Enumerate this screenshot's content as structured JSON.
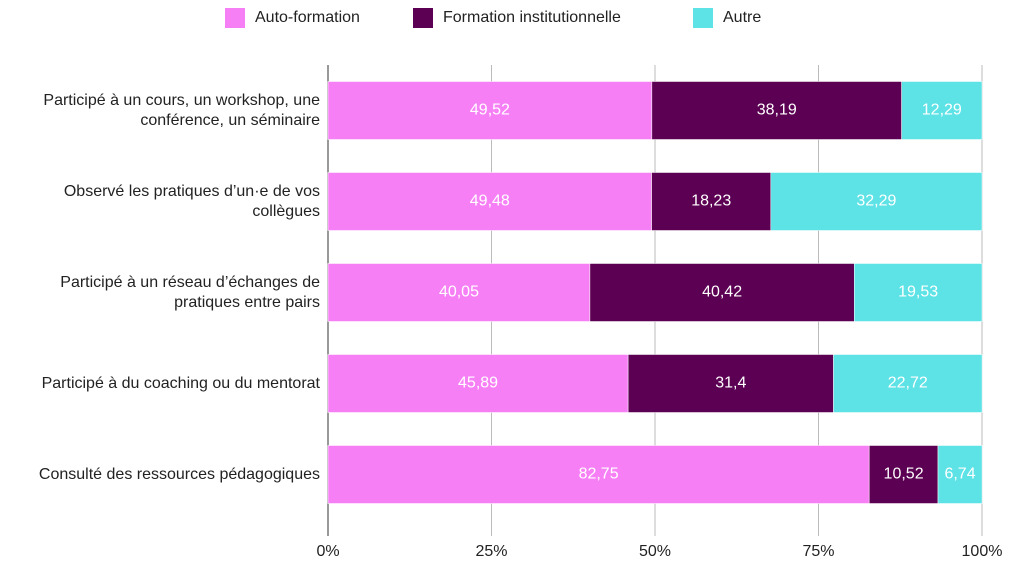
{
  "chart_data": {
    "type": "stacked-bar-horizontal",
    "categories": [
      "Participé à un cours, un workshop, une conférence, un séminaire",
      "Observé les pratiques d’un·e de vos collègues",
      "Participé à un réseau d’échanges de pratiques entre pairs",
      "Participé à du coaching ou du mentorat",
      "Consulté des ressources pédagogiques"
    ],
    "series": [
      {
        "name": "Auto-formation",
        "color": "#f77ff5",
        "values": [
          49.52,
          49.48,
          40.05,
          45.89,
          82.75
        ],
        "value_labels": [
          "49,52",
          "49,48",
          "40,05",
          "45,89",
          "82,75"
        ]
      },
      {
        "name": "Formation institutionnelle",
        "color": "#5c0053",
        "values": [
          38.19,
          18.23,
          40.42,
          31.4,
          10.52
        ],
        "value_labels": [
          "38,19",
          "18,23",
          "40,42",
          "31,4",
          "10,52"
        ]
      },
      {
        "name": "Autre",
        "color": "#5de2e6",
        "values": [
          12.29,
          32.29,
          19.53,
          22.72,
          6.74
        ],
        "value_labels": [
          "12,29",
          "32,29",
          "19,53",
          "22,72",
          "6,74"
        ]
      }
    ],
    "xlim": [
      0,
      100
    ],
    "xticks": [
      {
        "value": 0,
        "label": "0%"
      },
      {
        "value": 25,
        "label": "25%"
      },
      {
        "value": 50,
        "label": "50%"
      },
      {
        "value": 75,
        "label": "75%"
      },
      {
        "value": 100,
        "label": "100%"
      }
    ],
    "grid": true,
    "legend": "top"
  }
}
